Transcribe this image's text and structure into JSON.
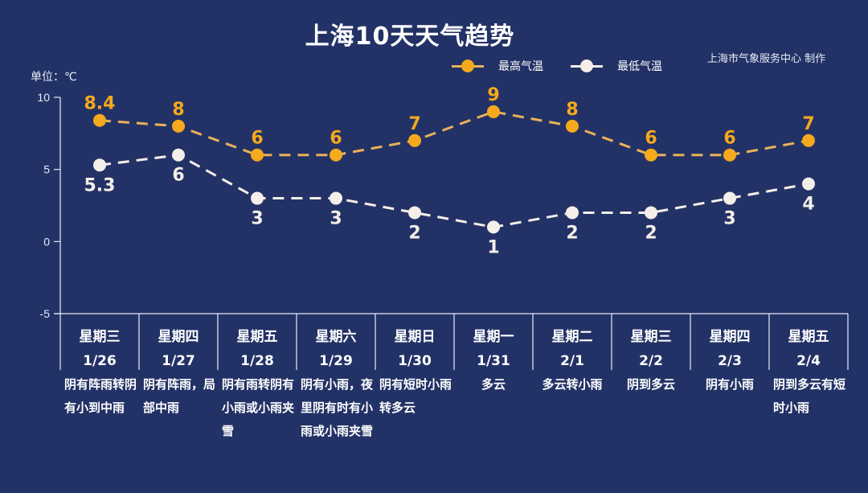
{
  "header": {
    "title": "上海10天天气趋势",
    "credit": "上海市气象服务中心 制作",
    "unit_label": "单位：℃"
  },
  "legend": [
    {
      "label": "最高气温",
      "color": "#f5a91c"
    },
    {
      "label": "最低气温",
      "color": "#f4efe9"
    }
  ],
  "colors": {
    "background": "#233266",
    "high": "#f5a91c",
    "high_line": "#e9b15a",
    "low": "#f4efe9",
    "axis": "#e8ecf6"
  },
  "chart_data": {
    "type": "line",
    "title": "上海10天天气趋势",
    "xlabel": "",
    "ylabel": "单位：℃",
    "ylim": [
      -5,
      10
    ],
    "yticks": [
      10,
      5,
      0,
      -5
    ],
    "grid": false,
    "legend_position": "top",
    "categories": [
      "星期三 1/26",
      "星期四 1/27",
      "星期五 1/28",
      "星期六 1/29",
      "星期日 1/30",
      "星期一 1/31",
      "星期二 2/1",
      "星期三 2/2",
      "星期四 2/3",
      "星期五 2/4"
    ],
    "series": [
      {
        "name": "最高气温",
        "values": [
          8.4,
          8,
          6,
          6,
          7,
          9,
          8,
          6,
          6,
          7
        ],
        "labels": [
          "8.4",
          "8",
          "6",
          "6",
          "7",
          "9",
          "8",
          "6",
          "6",
          "7"
        ]
      },
      {
        "name": "最低气温",
        "values": [
          5.3,
          6,
          3,
          3,
          2,
          1,
          2,
          2,
          3,
          4
        ],
        "labels": [
          "5.3",
          "6",
          "3",
          "3",
          "2",
          "1",
          "2",
          "2",
          "3",
          "4"
        ]
      }
    ],
    "days": [
      {
        "weekday": "星期三",
        "date": "1/26",
        "weather": "阴有阵雨转阴有小到中雨"
      },
      {
        "weekday": "星期四",
        "date": "1/27",
        "weather": "阴有阵雨，局部中雨"
      },
      {
        "weekday": "星期五",
        "date": "1/28",
        "weather": "阴有雨转阴有小雨或小雨夹雪"
      },
      {
        "weekday": "星期六",
        "date": "1/29",
        "weather": "阴有小雨，夜里阴有时有小雨或小雨夹雪"
      },
      {
        "weekday": "星期日",
        "date": "1/30",
        "weather": "阴有短时小雨转多云"
      },
      {
        "weekday": "星期一",
        "date": "1/31",
        "weather": "多云"
      },
      {
        "weekday": "星期二",
        "date": "2/1",
        "weather": "多云转小雨"
      },
      {
        "weekday": "星期三",
        "date": "2/2",
        "weather": "阴到多云"
      },
      {
        "weekday": "星期四",
        "date": "2/3",
        "weather": "阴有小雨"
      },
      {
        "weekday": "星期五",
        "date": "2/4",
        "weather": "阴到多云有短时小雨"
      }
    ]
  }
}
